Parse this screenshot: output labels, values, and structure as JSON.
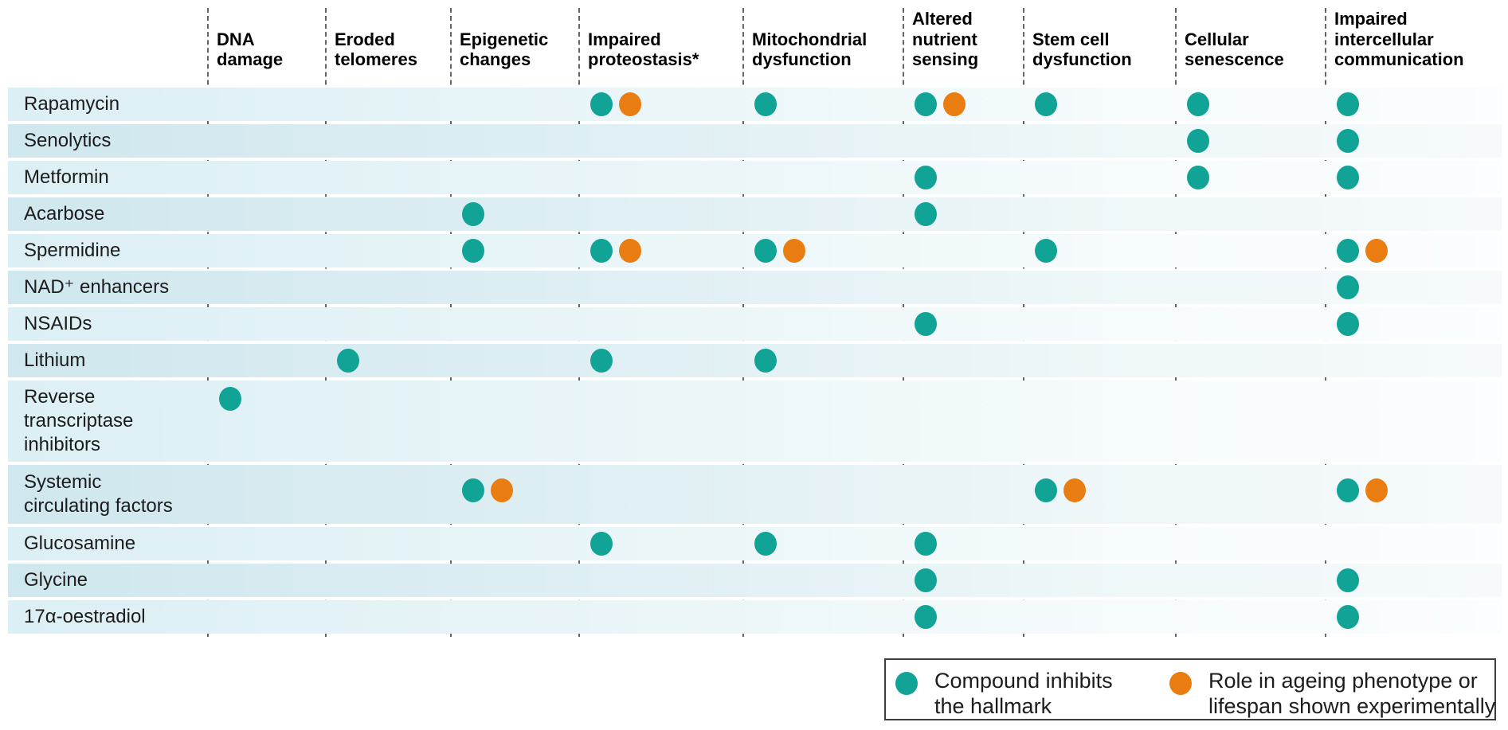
{
  "colors": {
    "teal": "#10A396",
    "orange": "#EA7D11",
    "gridline": "#4a4a4a"
  },
  "chart_data": {
    "type": "table",
    "description": "Dot matrix mapping ageing-intervention compounds (rows) to hallmarks of ageing (columns). Cell codes: T = teal dot (compound inhibits the hallmark), TO = teal dot plus orange dot (role in ageing phenotype or lifespan shown experimentally).",
    "columns": [
      "DNA damage",
      "Eroded telomeres",
      "Epigenetic changes",
      "Impaired proteostasis*",
      "Mitochondrial dysfunction",
      "Altered nutrient sensing",
      "Stem cell dysfunction",
      "Cellular senescence",
      "Impaired intercellular communication"
    ],
    "rows": [
      {
        "label": "Rapamycin",
        "cells": [
          "",
          "",
          "",
          "TO",
          "T",
          "TO",
          "T",
          "T",
          "T"
        ]
      },
      {
        "label": "Senolytics",
        "cells": [
          "",
          "",
          "",
          "",
          "",
          "",
          "",
          "T",
          "T"
        ]
      },
      {
        "label": "Metformin",
        "cells": [
          "",
          "",
          "",
          "",
          "",
          "T",
          "",
          "T",
          "T"
        ]
      },
      {
        "label": "Acarbose",
        "cells": [
          "",
          "",
          "T",
          "",
          "",
          "T",
          "",
          "",
          ""
        ]
      },
      {
        "label": "Spermidine",
        "cells": [
          "",
          "",
          "T",
          "TO",
          "TO",
          "",
          "T",
          "",
          "TO"
        ]
      },
      {
        "label": "NAD⁺ enhancers",
        "cells": [
          "",
          "",
          "",
          "",
          "",
          "",
          "",
          "",
          "T"
        ]
      },
      {
        "label": "NSAIDs",
        "cells": [
          "",
          "",
          "",
          "",
          "",
          "T",
          "",
          "",
          "T"
        ]
      },
      {
        "label": "Lithium",
        "cells": [
          "",
          "T",
          "",
          "T",
          "T",
          "",
          "",
          "",
          ""
        ]
      },
      {
        "label": "Reverse transcriptase inhibitors",
        "cells": [
          "T",
          "",
          "",
          "",
          "",
          "",
          "",
          "",
          ""
        ]
      },
      {
        "label": "Systemic circulating factors",
        "cells": [
          "",
          "",
          "TO",
          "",
          "",
          "",
          "TO",
          "",
          "TO"
        ]
      },
      {
        "label": "Glucosamine",
        "cells": [
          "",
          "",
          "",
          "T",
          "T",
          "T",
          "",
          "",
          ""
        ]
      },
      {
        "label": "Glycine",
        "cells": [
          "",
          "",
          "",
          "",
          "",
          "T",
          "",
          "",
          "T"
        ]
      },
      {
        "label": "17α-oestradiol",
        "cells": [
          "",
          "",
          "",
          "",
          "",
          "T",
          "",
          "",
          "T"
        ]
      }
    ]
  },
  "legend": {
    "items": [
      {
        "color": "teal",
        "label": "Compound inhibits the hallmark"
      },
      {
        "color": "orange",
        "label": "Role in ageing phenotype or lifespan shown experimentally"
      }
    ]
  }
}
